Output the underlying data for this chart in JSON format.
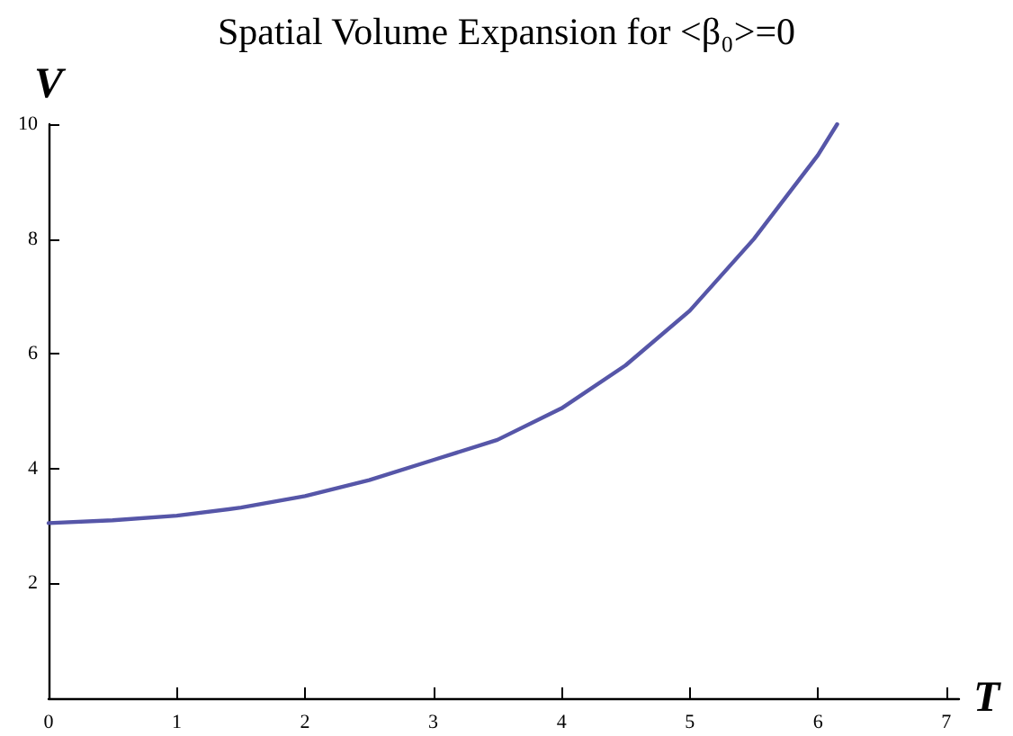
{
  "chart_data": {
    "type": "line",
    "title": "Spatial Volume Expansion for <β₀>=0",
    "xlabel": "T",
    "ylabel": "V",
    "x": [
      0,
      0.5,
      1,
      1.5,
      2,
      2.5,
      3,
      3.5,
      4,
      4.5,
      5,
      5.5,
      6,
      6.15
    ],
    "series": [
      {
        "color": "#5656a8",
        "values": [
          3.05,
          3.1,
          3.18,
          3.32,
          3.52,
          3.8,
          4.15,
          4.5,
          5.05,
          5.8,
          6.75,
          8.0,
          9.46,
          10.0
        ]
      }
    ],
    "xlim": [
      0,
      7.1
    ],
    "ylim": [
      0,
      10
    ],
    "xticks": [
      0,
      1,
      2,
      3,
      4,
      5,
      6,
      7
    ],
    "yticks": [
      2,
      4,
      6,
      8,
      10
    ],
    "grid": false,
    "marker": "none",
    "line_style": "solid"
  }
}
